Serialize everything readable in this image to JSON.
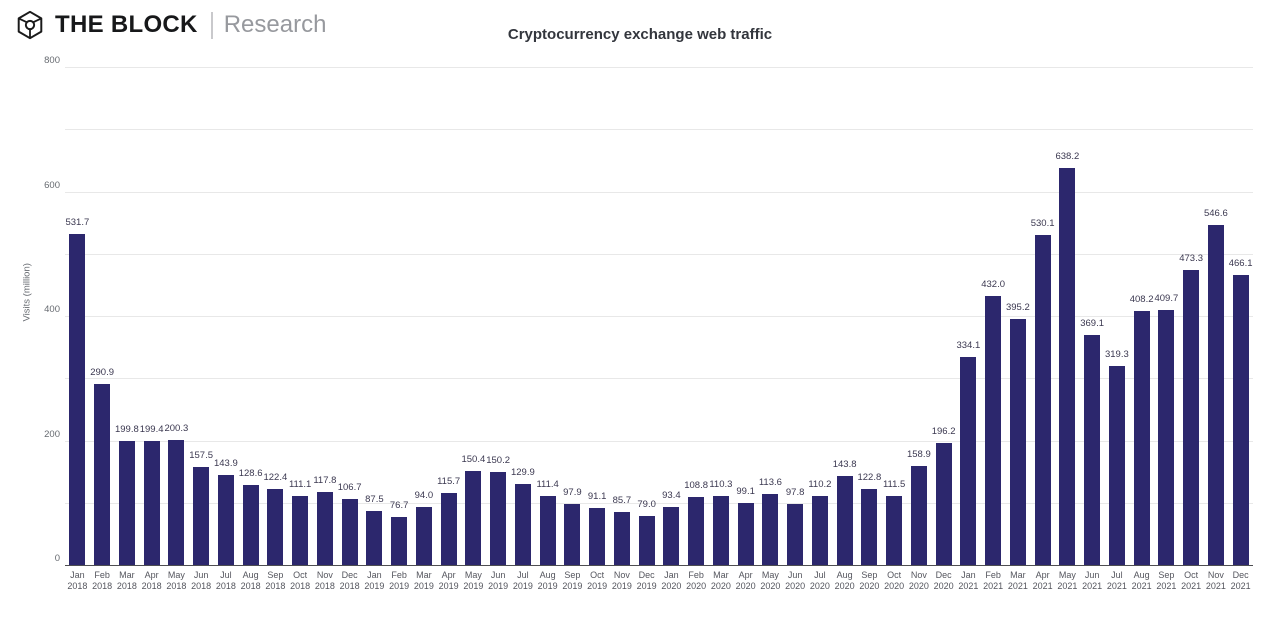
{
  "header": {
    "brand": "THE BLOCK",
    "brand_sub": "Research",
    "logo_icon": "block-cube-logo"
  },
  "chart_data": {
    "type": "bar",
    "title": "Cryptocurrency exchange web traffic",
    "xlabel": "",
    "ylabel": "Visits (million)",
    "ylim": [
      0,
      800
    ],
    "ytick_labels": [
      0,
      200,
      400,
      600,
      800
    ],
    "grid_step": 100,
    "grid": "on",
    "legend_position": "none",
    "bar_color": "#2c276d",
    "grid_color": "#e8e8e8",
    "axis_line_color": "#4e4e52",
    "value_label_color": "#3b3850",
    "tick_label_color": "#666a70",
    "categories": [
      "Jan 2018",
      "Feb 2018",
      "Mar 2018",
      "Apr 2018",
      "May 2018",
      "Jun 2018",
      "Jul 2018",
      "Aug 2018",
      "Sep 2018",
      "Oct 2018",
      "Nov 2018",
      "Dec 2018",
      "Jan 2019",
      "Feb 2019",
      "Mar 2019",
      "Apr 2019",
      "May 2019",
      "Jun 2019",
      "Jul 2019",
      "Aug 2019",
      "Sep 2019",
      "Oct 2019",
      "Nov 2019",
      "Dec 2019",
      "Jan 2020",
      "Feb 2020",
      "Mar 2020",
      "Apr 2020",
      "May 2020",
      "Jun 2020",
      "Jul 2020",
      "Aug 2020",
      "Sep 2020",
      "Oct 2020",
      "Nov 2020",
      "Dec 2020",
      "Jan 2021",
      "Feb 2021",
      "Mar 2021",
      "Apr 2021",
      "May 2021",
      "Jun 2021",
      "Jul 2021",
      "Aug 2021",
      "Sep 2021",
      "Oct 2021",
      "Nov 2021",
      "Dec 2021"
    ],
    "values": [
      "531.7",
      "290.9",
      "199.8",
      "199.4",
      "200.3",
      "157.5",
      "143.9",
      "128.6",
      "122.4",
      "111.1",
      "117.8",
      "106.7",
      "87.5",
      "76.7",
      "94.0",
      "115.7",
      "150.4",
      "150.2",
      "129.9",
      "111.4",
      "97.9",
      "91.1",
      "85.7",
      "79.0",
      "93.4",
      "108.8",
      "110.3",
      "99.1",
      "113.6",
      "97.8",
      "110.2",
      "143.8",
      "122.8",
      "111.5",
      "158.9",
      "196.2",
      "334.1",
      "432.0",
      "395.2",
      "530.1",
      "638.2",
      "369.1",
      "319.3",
      "408.2",
      "409.7",
      "473.3",
      "546.6",
      "466.1"
    ]
  }
}
